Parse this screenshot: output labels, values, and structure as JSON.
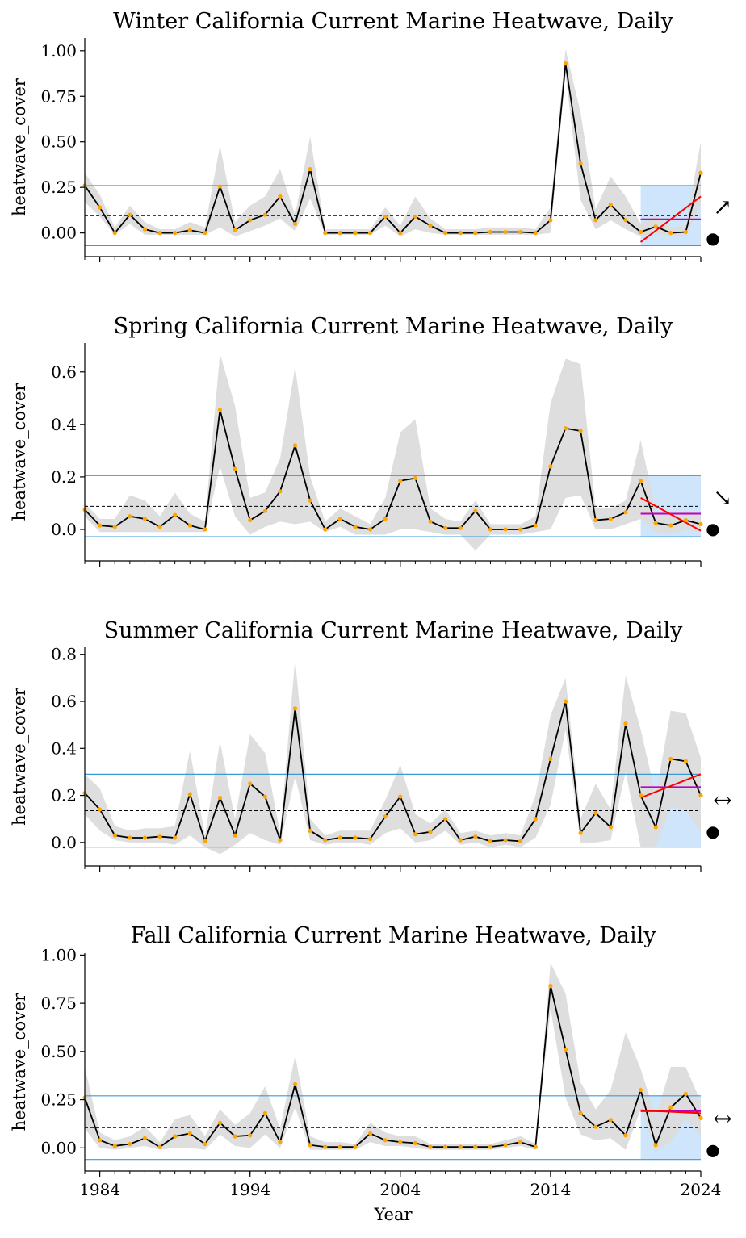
{
  "x_axis": {
    "label": "Year",
    "ticks": [
      1984,
      1994,
      2004,
      2014,
      2024
    ],
    "tick_labels": [
      "1984",
      "1994",
      "2004",
      "2014",
      "2024"
    ],
    "minor_ticks": [
      1983,
      1984,
      1985,
      1986,
      1987,
      1988,
      1989,
      1990,
      1991,
      1992,
      1993,
      1994,
      1995,
      1996,
      1997,
      1998,
      1999,
      2000,
      2001,
      2002,
      2003,
      2004,
      2005,
      2006,
      2007,
      2008,
      2009,
      2010,
      2011,
      2012,
      2013,
      2014,
      2015,
      2016,
      2017,
      2018,
      2019,
      2020,
      2021,
      2022,
      2023,
      2024
    ],
    "xlim": [
      1983,
      2024
    ]
  },
  "colors": {
    "main_line": "#000000",
    "points": "#ffa500",
    "band": "#dcdcdc",
    "sd_lines": "#3a9ad9",
    "mean_line": "#000000",
    "recent_shade": "#cfe5fb",
    "trend_line": "#ff0000",
    "recent_mean": "#bf00bf"
  },
  "chart_data": [
    {
      "type": "line",
      "title": "Winter California Current Marine Heatwave, Daily",
      "ylabel": "heatwave_cover",
      "ylim": [
        -0.13,
        1.07
      ],
      "yticks": [
        0.0,
        0.25,
        0.5,
        0.75,
        1.0
      ],
      "ytick_labels": [
        "0.00",
        "0.25",
        "0.50",
        "0.75",
        "1.00"
      ],
      "x": [
        1983,
        1984,
        1985,
        1986,
        1987,
        1988,
        1989,
        1990,
        1991,
        1992,
        1993,
        1994,
        1995,
        1996,
        1997,
        1998,
        1999,
        2000,
        2001,
        2002,
        2003,
        2004,
        2005,
        2006,
        2007,
        2008,
        2009,
        2010,
        2011,
        2012,
        2013,
        2014,
        2015,
        2016,
        2017,
        2018,
        2019,
        2020,
        2021,
        2022,
        2023,
        2024
      ],
      "y": [
        0.26,
        0.14,
        0.0,
        0.1,
        0.02,
        0.0,
        0.0,
        0.015,
        0.0,
        0.255,
        0.015,
        0.07,
        0.1,
        0.2,
        0.05,
        0.35,
        0.0,
        0.0,
        0.0,
        0.0,
        0.09,
        0.0,
        0.09,
        0.04,
        0.0,
        0.0,
        0.0,
        0.005,
        0.005,
        0.005,
        0.0,
        0.07,
        0.93,
        0.38,
        0.07,
        0.155,
        0.07,
        0.005,
        0.035,
        0.0,
        0.005,
        0.33
      ],
      "upper": [
        0.33,
        0.21,
        0.03,
        0.15,
        0.06,
        0.02,
        0.02,
        0.06,
        0.03,
        0.48,
        0.06,
        0.15,
        0.2,
        0.35,
        0.1,
        0.53,
        0.02,
        0.02,
        0.02,
        0.02,
        0.14,
        0.04,
        0.2,
        0.08,
        0.02,
        0.02,
        0.02,
        0.03,
        0.03,
        0.03,
        0.02,
        0.14,
        1.01,
        0.66,
        0.13,
        0.31,
        0.2,
        0.05,
        0.1,
        0.03,
        0.04,
        0.5
      ],
      "lower": [
        0.17,
        0.09,
        -0.01,
        0.05,
        -0.01,
        -0.01,
        -0.01,
        -0.01,
        -0.01,
        0.03,
        -0.02,
        0.01,
        0.04,
        0.08,
        0.01,
        0.19,
        -0.01,
        -0.01,
        -0.01,
        -0.01,
        0.04,
        -0.02,
        0.02,
        0.0,
        -0.01,
        -0.01,
        -0.01,
        -0.01,
        -0.01,
        -0.01,
        -0.01,
        0.0,
        0.87,
        0.18,
        0.02,
        0.07,
        0.02,
        -0.02,
        0.0,
        -0.02,
        -0.02,
        0.16
      ],
      "mean": 0.095,
      "sd_upper": 0.26,
      "sd_lower": -0.07,
      "recent_window": [
        2020,
        2024
      ],
      "trend": [
        -0.05,
        0.2
      ],
      "recent_mean": 0.075,
      "trend_symbol": "↗",
      "mean_symbol": "●"
    },
    {
      "type": "line",
      "title": "Spring California Current Marine Heatwave, Daily",
      "ylabel": "heatwave_cover",
      "ylim": [
        -0.12,
        0.71
      ],
      "yticks": [
        0.0,
        0.2,
        0.4,
        0.6
      ],
      "ytick_labels": [
        "0.0",
        "0.2",
        "0.4",
        "0.6"
      ],
      "x": [
        1983,
        1984,
        1985,
        1986,
        1987,
        1988,
        1989,
        1990,
        1991,
        1992,
        1993,
        1994,
        1995,
        1996,
        1997,
        1998,
        1999,
        2000,
        2001,
        2002,
        2003,
        2004,
        2005,
        2006,
        2007,
        2008,
        2009,
        2010,
        2011,
        2012,
        2013,
        2014,
        2015,
        2016,
        2017,
        2018,
        2019,
        2020,
        2021,
        2022,
        2023,
        2024
      ],
      "y": [
        0.075,
        0.015,
        0.01,
        0.05,
        0.04,
        0.01,
        0.055,
        0.015,
        0.0,
        0.455,
        0.23,
        0.035,
        0.07,
        0.145,
        0.32,
        0.11,
        0.0,
        0.04,
        0.01,
        0.0,
        0.04,
        0.185,
        0.195,
        0.03,
        0.005,
        0.005,
        0.07,
        0.0,
        0.0,
        0.0,
        0.015,
        0.24,
        0.385,
        0.375,
        0.035,
        0.04,
        0.065,
        0.185,
        0.025,
        0.015,
        0.035,
        0.02
      ],
      "upper": [
        0.1,
        0.04,
        0.04,
        0.13,
        0.11,
        0.05,
        0.14,
        0.06,
        0.03,
        0.67,
        0.47,
        0.12,
        0.14,
        0.27,
        0.62,
        0.2,
        0.03,
        0.08,
        0.05,
        0.02,
        0.12,
        0.37,
        0.42,
        0.08,
        0.04,
        0.03,
        0.11,
        0.02,
        0.02,
        0.02,
        0.05,
        0.48,
        0.65,
        0.63,
        0.08,
        0.08,
        0.11,
        0.34,
        0.07,
        0.06,
        0.07,
        0.06
      ],
      "lower": [
        0.05,
        -0.01,
        -0.01,
        -0.01,
        -0.01,
        -0.01,
        -0.01,
        -0.01,
        -0.01,
        0.24,
        0.05,
        -0.02,
        0.01,
        0.03,
        0.02,
        0.03,
        -0.01,
        0.01,
        -0.02,
        -0.02,
        -0.02,
        0.0,
        0.0,
        -0.01,
        -0.02,
        -0.02,
        -0.08,
        -0.02,
        -0.02,
        -0.02,
        -0.01,
        0.0,
        0.12,
        0.13,
        0.0,
        0.0,
        0.02,
        0.04,
        -0.01,
        -0.02,
        0.0,
        -0.01
      ],
      "mean": 0.088,
      "sd_upper": 0.205,
      "sd_lower": -0.028,
      "recent_window": [
        2020,
        2024
      ],
      "trend": [
        0.12,
        -0.005
      ],
      "recent_mean": 0.06,
      "trend_symbol": "↘",
      "mean_symbol": "●"
    },
    {
      "type": "line",
      "title": "Summer California Current Marine Heatwave, Daily",
      "ylabel": "heatwave_cover",
      "ylim": [
        -0.1,
        0.83
      ],
      "yticks": [
        0.0,
        0.2,
        0.4,
        0.6,
        0.8
      ],
      "ytick_labels": [
        "0.0",
        "0.2",
        "0.4",
        "0.6",
        "0.8"
      ],
      "x": [
        1983,
        1984,
        1985,
        1986,
        1987,
        1988,
        1989,
        1990,
        1991,
        1992,
        1993,
        1994,
        1995,
        1996,
        1997,
        1998,
        1999,
        2000,
        2001,
        2002,
        2003,
        2004,
        2005,
        2006,
        2007,
        2008,
        2009,
        2010,
        2011,
        2012,
        2013,
        2014,
        2015,
        2016,
        2017,
        2018,
        2019,
        2020,
        2021,
        2022,
        2023,
        2024
      ],
      "y": [
        0.21,
        0.14,
        0.03,
        0.02,
        0.02,
        0.025,
        0.02,
        0.205,
        0.005,
        0.19,
        0.03,
        0.25,
        0.195,
        0.01,
        0.57,
        0.05,
        0.01,
        0.02,
        0.02,
        0.015,
        0.11,
        0.195,
        0.035,
        0.045,
        0.1,
        0.01,
        0.025,
        0.005,
        0.01,
        0.005,
        0.1,
        0.355,
        0.6,
        0.04,
        0.125,
        0.065,
        0.505,
        0.2,
        0.065,
        0.355,
        0.345,
        0.2
      ],
      "upper": [
        0.29,
        0.23,
        0.07,
        0.05,
        0.06,
        0.06,
        0.07,
        0.39,
        0.03,
        0.43,
        0.1,
        0.46,
        0.38,
        0.04,
        0.78,
        0.1,
        0.03,
        0.05,
        0.05,
        0.05,
        0.18,
        0.33,
        0.12,
        0.08,
        0.14,
        0.04,
        0.05,
        0.03,
        0.04,
        0.03,
        0.2,
        0.54,
        0.7,
        0.1,
        0.25,
        0.14,
        0.71,
        0.48,
        0.2,
        0.56,
        0.55,
        0.36
      ],
      "lower": [
        0.12,
        0.05,
        0.01,
        0.0,
        0.0,
        0.0,
        -0.01,
        0.03,
        -0.02,
        -0.05,
        -0.01,
        0.04,
        0.01,
        -0.01,
        0.28,
        0.01,
        -0.01,
        0.0,
        0.0,
        -0.01,
        0.04,
        0.06,
        0.0,
        0.01,
        0.05,
        -0.01,
        0.0,
        -0.02,
        -0.01,
        -0.02,
        0.02,
        0.16,
        0.48,
        0.0,
        0.0,
        0.01,
        0.3,
        -0.02,
        -0.02,
        0.15,
        0.14,
        0.04
      ],
      "mean": 0.135,
      "sd_upper": 0.29,
      "sd_lower": -0.02,
      "recent_window": [
        2020,
        2024
      ],
      "trend": [
        0.19,
        0.29
      ],
      "recent_mean": 0.235,
      "trend_symbol": "↔",
      "mean_symbol": "●"
    },
    {
      "type": "line",
      "title": "Fall California Current Marine Heatwave, Daily",
      "ylabel": "heatwave_cover",
      "ylim": [
        -0.12,
        1.01
      ],
      "yticks": [
        0.0,
        0.25,
        0.5,
        0.75,
        1.0
      ],
      "ytick_labels": [
        "0.00",
        "0.25",
        "0.50",
        "0.75",
        "1.00"
      ],
      "x": [
        1983,
        1984,
        1985,
        1986,
        1987,
        1988,
        1989,
        1990,
        1991,
        1992,
        1993,
        1994,
        1995,
        1996,
        1997,
        1998,
        1999,
        2000,
        2001,
        2002,
        2003,
        2004,
        2005,
        2006,
        2007,
        2008,
        2009,
        2010,
        2011,
        2012,
        2013,
        2014,
        2015,
        2016,
        2017,
        2018,
        2019,
        2020,
        2021,
        2022,
        2023,
        2024
      ],
      "y": [
        0.26,
        0.04,
        0.01,
        0.02,
        0.05,
        0.005,
        0.06,
        0.075,
        0.02,
        0.13,
        0.06,
        0.065,
        0.18,
        0.03,
        0.33,
        0.015,
        0.005,
        0.005,
        0.005,
        0.075,
        0.04,
        0.03,
        0.025,
        0.005,
        0.005,
        0.005,
        0.005,
        0.005,
        0.015,
        0.03,
        0.005,
        0.84,
        0.51,
        0.18,
        0.11,
        0.145,
        0.065,
        0.3,
        0.015,
        0.21,
        0.28,
        0.155
      ],
      "upper": [
        0.42,
        0.08,
        0.04,
        0.06,
        0.11,
        0.03,
        0.15,
        0.17,
        0.06,
        0.2,
        0.12,
        0.18,
        0.32,
        0.1,
        0.48,
        0.06,
        0.03,
        0.03,
        0.02,
        0.13,
        0.08,
        0.06,
        0.06,
        0.02,
        0.02,
        0.02,
        0.02,
        0.02,
        0.04,
        0.06,
        0.02,
        0.96,
        0.8,
        0.34,
        0.2,
        0.3,
        0.6,
        0.41,
        0.16,
        0.42,
        0.42,
        0.24
      ],
      "lower": [
        0.1,
        0.0,
        -0.01,
        0.0,
        0.01,
        -0.01,
        0.0,
        0.0,
        -0.01,
        0.07,
        0.01,
        0.0,
        0.07,
        0.0,
        0.21,
        -0.01,
        -0.01,
        -0.01,
        -0.01,
        0.03,
        0.01,
        0.01,
        0.0,
        -0.01,
        -0.01,
        -0.01,
        -0.01,
        -0.01,
        0.0,
        0.01,
        -0.01,
        0.72,
        0.26,
        0.07,
        0.04,
        0.05,
        -0.01,
        0.2,
        -0.02,
        0.03,
        0.15,
        0.06
      ],
      "mean": 0.105,
      "sd_upper": 0.27,
      "sd_lower": -0.06,
      "recent_window": [
        2020,
        2024
      ],
      "trend": [
        0.195,
        0.18
      ],
      "recent_mean": 0.19,
      "trend_symbol": "↔",
      "mean_symbol": "●"
    }
  ]
}
